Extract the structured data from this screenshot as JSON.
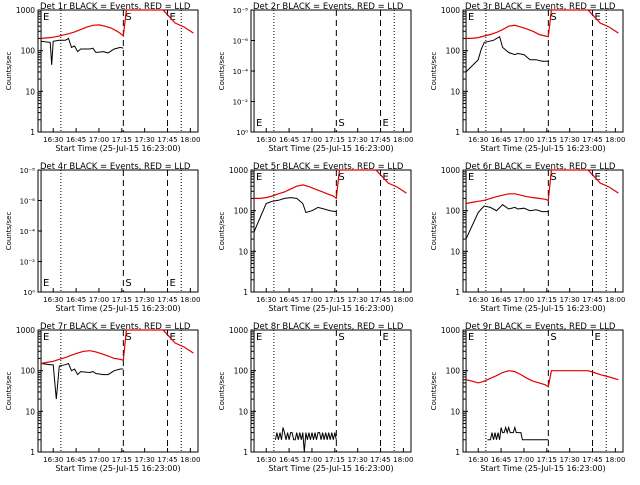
{
  "figure": {
    "xlabel": "Start Time (25-Jul-15 16:23:00)",
    "ylabel": "Counts/sec",
    "colors": {
      "events": "#000000",
      "lld": "#e00000",
      "axes": "#000000",
      "background": "#ffffff"
    },
    "xticks": [
      "16:30",
      "16:45",
      "17:00",
      "17:15",
      "17:30",
      "17:45",
      "18:00"
    ],
    "xtick_minutes": [
      30,
      45,
      60,
      75,
      90,
      105,
      120
    ],
    "xlim_minutes": [
      20,
      125
    ],
    "ylim": [
      1,
      1000
    ],
    "yscale": "log",
    "yticks": [
      "1",
      "10",
      "100",
      "1000"
    ],
    "yticks_tiny": [
      "10⁰",
      "10⁻²",
      "10⁻⁴",
      "10⁻⁶",
      "10⁻⁸"
    ],
    "markers": [
      {
        "letter": "E",
        "minute": 22,
        "style": "solid"
      },
      {
        "letter": "S",
        "minute": 76,
        "style": "dashed"
      },
      {
        "letter": "E",
        "minute": 105,
        "style": "dashed"
      }
    ],
    "dotted_minutes": [
      35,
      114
    ]
  },
  "chart_data": [
    {
      "type": "line",
      "title": "Det 1r BLACK = Events, RED = LLD",
      "series": [
        {
          "name": "Events",
          "x": [
            22,
            28,
            29,
            30,
            34,
            38,
            40,
            42,
            44,
            46,
            48,
            54,
            56,
            58,
            63,
            66,
            70,
            74,
            76,
            77,
            80,
            84,
            86,
            90,
            95,
            100,
            104
          ],
          "y": [
            170,
            160,
            45,
            170,
            180,
            180,
            200,
            120,
            130,
            95,
            110,
            110,
            115,
            90,
            95,
            88,
            110,
            120,
            115,
            null,
            null,
            null,
            null,
            null,
            null,
            null,
            null
          ]
        },
        {
          "name": "LLD",
          "x": [
            22,
            28,
            32,
            36,
            40,
            44,
            48,
            52,
            56,
            60,
            64,
            68,
            72,
            75,
            76,
            78,
            82,
            86,
            90,
            94,
            98,
            102,
            106,
            110,
            116,
            122
          ],
          "y": [
            200,
            210,
            220,
            240,
            260,
            290,
            330,
            380,
            420,
            430,
            400,
            360,
            300,
            250,
            230,
            1000,
            1000,
            1000,
            1000,
            1000,
            1000,
            1000,
            700,
            480,
            380,
            270
          ]
        }
      ]
    },
    {
      "type": "line",
      "title": "Det 2r BLACK = Events, RED = LLD",
      "tiny": true,
      "series": []
    },
    {
      "type": "line",
      "title": "Det 3r BLACK = Events, RED = LLD",
      "series": [
        {
          "name": "Events",
          "x": [
            22,
            30,
            32,
            34,
            40,
            44,
            46,
            50,
            54,
            56,
            60,
            64,
            68,
            72,
            76
          ],
          "y": [
            30,
            60,
            110,
            160,
            180,
            220,
            120,
            90,
            80,
            85,
            80,
            60,
            60,
            55,
            55
          ]
        },
        {
          "name": "LLD",
          "x": [
            22,
            26,
            30,
            34,
            38,
            42,
            46,
            50,
            54,
            58,
            62,
            66,
            70,
            74,
            76,
            78,
            82,
            86,
            90,
            94,
            98,
            102,
            106,
            110,
            116,
            122
          ],
          "y": [
            200,
            200,
            210,
            230,
            250,
            280,
            330,
            400,
            420,
            380,
            340,
            300,
            250,
            230,
            220,
            1000,
            1000,
            1000,
            1000,
            1000,
            1000,
            1000,
            700,
            480,
            380,
            270
          ]
        }
      ]
    },
    {
      "type": "line",
      "title": "Det 4r BLACK = Events, RED = LLD",
      "tiny": true,
      "series": []
    },
    {
      "type": "line",
      "title": "Det 5r BLACK = Events, RED = LLD",
      "series": [
        {
          "name": "Events",
          "x": [
            22,
            30,
            32,
            34,
            38,
            42,
            46,
            50,
            54,
            56,
            60,
            64,
            68,
            72,
            76
          ],
          "y": [
            30,
            150,
            160,
            170,
            180,
            200,
            210,
            200,
            150,
            90,
            100,
            120,
            110,
            100,
            95
          ]
        },
        {
          "name": "LLD",
          "x": [
            22,
            26,
            30,
            34,
            38,
            42,
            46,
            50,
            54,
            58,
            62,
            66,
            70,
            74,
            76,
            78,
            82,
            86,
            90,
            94,
            98,
            102,
            106,
            110,
            116,
            122
          ],
          "y": [
            200,
            200,
            210,
            230,
            260,
            290,
            340,
            400,
            430,
            390,
            340,
            300,
            260,
            230,
            200,
            1000,
            1000,
            1000,
            1000,
            1000,
            1000,
            1000,
            700,
            480,
            380,
            270
          ]
        }
      ]
    },
    {
      "type": "line",
      "title": "Det 6r BLACK = Events, RED = LLD",
      "series": [
        {
          "name": "Events",
          "x": [
            22,
            30,
            32,
            34,
            38,
            42,
            46,
            50,
            54,
            56,
            60,
            64,
            68,
            72,
            76
          ],
          "y": [
            20,
            90,
            110,
            130,
            120,
            100,
            140,
            110,
            120,
            110,
            115,
            100,
            105,
            95,
            95
          ]
        },
        {
          "name": "LLD",
          "x": [
            22,
            26,
            30,
            34,
            38,
            42,
            46,
            50,
            54,
            58,
            62,
            66,
            70,
            74,
            76,
            78,
            82,
            86,
            90,
            94,
            98,
            102,
            106,
            110,
            116,
            122
          ],
          "y": [
            150,
            160,
            170,
            180,
            200,
            220,
            240,
            260,
            260,
            240,
            220,
            210,
            200,
            190,
            180,
            1000,
            1000,
            1000,
            1000,
            1000,
            1000,
            1000,
            700,
            480,
            380,
            270
          ]
        }
      ]
    },
    {
      "type": "line",
      "title": "Det 7r BLACK = Events, RED = LLD",
      "series": [
        {
          "name": "Events",
          "x": [
            22,
            28,
            30,
            32,
            34,
            38,
            40,
            42,
            44,
            46,
            48,
            54,
            56,
            58,
            63,
            66,
            70,
            74,
            76
          ],
          "y": [
            150,
            140,
            140,
            20,
            130,
            140,
            150,
            100,
            110,
            80,
            95,
            90,
            95,
            85,
            80,
            80,
            100,
            110,
            110
          ]
        },
        {
          "name": "LLD",
          "x": [
            22,
            26,
            30,
            34,
            38,
            42,
            46,
            50,
            54,
            58,
            62,
            66,
            70,
            74,
            76,
            78,
            82,
            86,
            90,
            94,
            98,
            102,
            106,
            110,
            116,
            122
          ],
          "y": [
            150,
            160,
            170,
            190,
            210,
            240,
            270,
            300,
            310,
            290,
            260,
            230,
            200,
            190,
            180,
            1000,
            1000,
            1000,
            1000,
            1000,
            1000,
            1000,
            700,
            480,
            380,
            270
          ]
        }
      ]
    },
    {
      "type": "line",
      "title": "Det 8r BLACK = Events, RED = LLD",
      "series": [
        {
          "name": "Events",
          "x": [
            36,
            37,
            38,
            39,
            40,
            41,
            42,
            43,
            44,
            45,
            46,
            47,
            48,
            49,
            50,
            51,
            52,
            53,
            54,
            55,
            56,
            57,
            58,
            59,
            60,
            61,
            62,
            63,
            64,
            65,
            66,
            67,
            68,
            69,
            70,
            71,
            72,
            73,
            74,
            75,
            76
          ],
          "y": [
            2,
            3,
            2,
            3,
            2,
            4,
            3,
            2,
            3,
            2,
            3,
            3,
            2,
            2,
            3,
            2,
            3,
            2,
            3,
            1,
            3,
            2,
            3,
            2,
            3,
            2,
            3,
            2,
            3,
            3,
            2,
            3,
            2,
            3,
            2,
            3,
            2,
            3,
            2,
            3,
            2
          ]
        }
      ]
    },
    {
      "type": "line",
      "title": "Det 9r BLACK = Events, RED = LLD",
      "series": [
        {
          "name": "Events",
          "x": [
            36,
            37,
            38,
            39,
            40,
            41,
            42,
            43,
            44,
            45,
            46,
            47,
            48,
            49,
            50,
            51,
            52,
            53,
            54,
            55,
            56,
            57,
            58,
            59,
            60,
            61,
            62,
            63,
            64,
            65,
            66,
            67,
            68,
            69,
            70,
            71,
            72,
            73,
            74,
            75,
            76
          ],
          "y": [
            2,
            2,
            2,
            3,
            2,
            3,
            2,
            3,
            2,
            4,
            3,
            3,
            4,
            3,
            4,
            3,
            3,
            3,
            4,
            3,
            3,
            3,
            3,
            2,
            2,
            2,
            2,
            2,
            2,
            2,
            2,
            2,
            2,
            2,
            2,
            2,
            2,
            2,
            2,
            2,
            2
          ]
        },
        {
          "name": "LLD",
          "x": [
            22,
            26,
            30,
            34,
            38,
            42,
            46,
            50,
            54,
            58,
            62,
            66,
            70,
            74,
            76,
            78,
            82,
            86,
            90,
            94,
            98,
            102,
            106,
            110,
            116,
            122
          ],
          "y": [
            60,
            55,
            50,
            55,
            65,
            75,
            90,
            100,
            95,
            80,
            65,
            55,
            50,
            45,
            40,
            100,
            100,
            100,
            100,
            100,
            100,
            100,
            90,
            80,
            70,
            60
          ]
        }
      ]
    }
  ]
}
